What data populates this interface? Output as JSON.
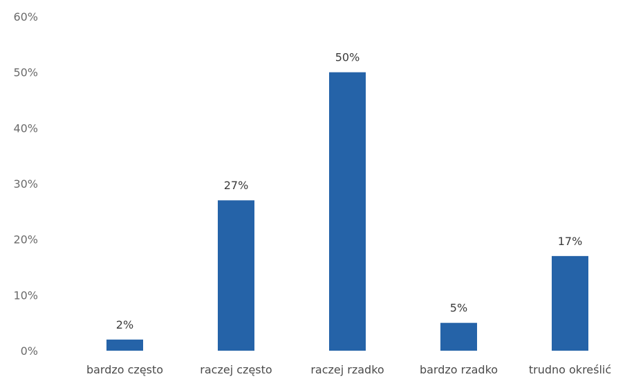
{
  "chart_data": {
    "type": "bar",
    "categories": [
      "bardzo często",
      "raczej często",
      "raczej rzadko",
      "bardzo rzadko",
      "trudno określić"
    ],
    "values": [
      2,
      27,
      50,
      5,
      17
    ],
    "data_labels": [
      "2%",
      "27%",
      "50%",
      "5%",
      "17%"
    ],
    "title": "",
    "xlabel": "",
    "ylabel": "",
    "ylim": [
      0,
      60
    ],
    "y_ticks": [
      0,
      10,
      20,
      30,
      40,
      50,
      60
    ],
    "y_tick_labels": [
      "0%",
      "10%",
      "20%",
      "30%",
      "40%",
      "50%",
      "60%"
    ],
    "grid": false,
    "legend": "none",
    "bar_color": "#2563a8"
  }
}
